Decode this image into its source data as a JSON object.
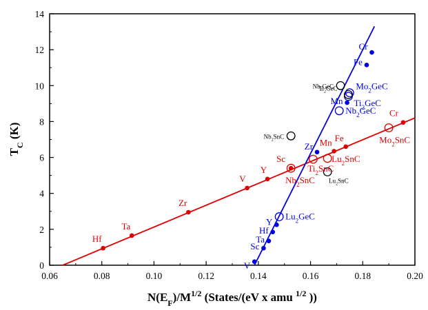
{
  "chart_data": {
    "type": "scatter",
    "xlabel_parts": [
      {
        "t": "N(E",
        "sub": false
      },
      {
        "t": "F",
        "sub": true
      },
      {
        "t": ")/M",
        "sub": false
      },
      {
        "t": "1/2",
        "sup": true
      },
      {
        "t": " (States/(eV x amu ",
        "sub": false
      },
      {
        "t": "1/2",
        "sup": true
      },
      {
        "t": " ))",
        "sub": false
      }
    ],
    "ylabel_parts": [
      {
        "t": "T",
        "sub": false
      },
      {
        "t": "C",
        "sub": true
      },
      {
        "t": " (K)",
        "sub": false
      }
    ],
    "xlim": [
      0.06,
      0.2
    ],
    "ylim": [
      0,
      14
    ],
    "xticks": [
      0.06,
      0.08,
      0.1,
      0.12,
      0.14,
      0.16,
      0.18,
      0.2
    ],
    "xtick_labels": [
      "0.06",
      "0.08",
      "0.10",
      "0.12",
      "0.14",
      "0.16",
      "0.18",
      "0.20"
    ],
    "yticks": [
      0,
      2,
      4,
      6,
      8,
      10,
      12,
      14
    ],
    "ytick_labels": [
      "0",
      "2",
      "4",
      "6",
      "8",
      "10",
      "12",
      "14"
    ],
    "grid": false,
    "lines": [
      {
        "color": "#e00000",
        "x": [
          0.065,
          0.2
        ],
        "y": [
          0.0,
          8.2
        ]
      },
      {
        "color": "#0000e6",
        "x": [
          0.1385,
          0.1845
        ],
        "y": [
          0.0,
          13.3
        ]
      }
    ],
    "series": [
      {
        "color": "#e00000",
        "marker": "dot",
        "points": [
          {
            "x": 0.0805,
            "y": 0.95,
            "label": [
              {
                "t": "Hf"
              }
            ]
          },
          {
            "x": 0.0915,
            "y": 1.65,
            "label": [
              {
                "t": "Ta"
              }
            ]
          },
          {
            "x": 0.1132,
            "y": 2.95,
            "label": [
              {
                "t": "Zr"
              }
            ]
          },
          {
            "x": 0.1357,
            "y": 4.3,
            "label": [
              {
                "t": "V"
              }
            ]
          },
          {
            "x": 0.1435,
            "y": 4.8,
            "label": [
              {
                "t": "Y"
              }
            ]
          },
          {
            "x": 0.1525,
            "y": 5.4,
            "label": [
              {
                "t": "Sc"
              }
            ]
          },
          {
            "x": 0.169,
            "y": 6.35,
            "label": [
              {
                "t": "Mn"
              }
            ]
          },
          {
            "x": 0.1735,
            "y": 6.6,
            "label": [
              {
                "t": "Fe"
              }
            ]
          },
          {
            "x": 0.1955,
            "y": 7.95,
            "label": [
              {
                "t": "Cr"
              }
            ]
          }
        ]
      },
      {
        "color": "#e00000",
        "marker": "circle",
        "points": [
          {
            "x": 0.1525,
            "y": 5.4,
            "label": [
              {
                "t": "Nb"
              },
              {
                "t": "2",
                "sub": true
              },
              {
                "t": "SnC"
              }
            ]
          },
          {
            "x": 0.161,
            "y": 5.9,
            "label": [
              {
                "t": "Ti"
              },
              {
                "t": "2",
                "sub": true
              },
              {
                "t": "SnC"
              }
            ]
          },
          {
            "x": 0.1665,
            "y": 5.95,
            "label": [
              {
                "t": "Lu"
              },
              {
                "t": "2",
                "sub": true
              },
              {
                "t": "SnC"
              }
            ]
          },
          {
            "x": 0.19,
            "y": 7.65,
            "label": [
              {
                "t": "Mo"
              },
              {
                "t": "2",
                "sub": true
              },
              {
                "t": "SnC"
              }
            ]
          }
        ]
      },
      {
        "color": "#0000e6",
        "marker": "dot",
        "points": [
          {
            "x": 0.1385,
            "y": 0.2,
            "label": [
              {
                "t": "V"
              }
            ]
          },
          {
            "x": 0.142,
            "y": 0.95,
            "label": [
              {
                "t": "Sc"
              }
            ]
          },
          {
            "x": 0.144,
            "y": 1.35,
            "label": [
              {
                "t": "Ta"
              }
            ]
          },
          {
            "x": 0.1455,
            "y": 1.85,
            "label": [
              {
                "t": "Hf"
              }
            ]
          },
          {
            "x": 0.147,
            "y": 2.25,
            "label": [
              {
                "t": "Y"
              }
            ]
          },
          {
            "x": 0.1625,
            "y": 6.3,
            "label": [
              {
                "t": "Zr"
              }
            ]
          },
          {
            "x": 0.174,
            "y": 9.05,
            "label": [
              {
                "t": "Mn"
              }
            ]
          },
          {
            "x": 0.1815,
            "y": 11.15,
            "label": [
              {
                "t": "Fe"
              }
            ]
          },
          {
            "x": 0.1835,
            "y": 11.85,
            "label": [
              {
                "t": "Cr"
              }
            ]
          }
        ]
      },
      {
        "color": "#0000e6",
        "marker": "circle",
        "points": [
          {
            "x": 0.148,
            "y": 2.7,
            "label": [
              {
                "t": "Lu"
              },
              {
                "t": "2",
                "sub": true
              },
              {
                "t": "GeC"
              }
            ]
          },
          {
            "x": 0.171,
            "y": 8.6,
            "label": [
              {
                "t": "Nb"
              },
              {
                "t": "2",
                "sub": true
              },
              {
                "t": "GeC"
              }
            ]
          },
          {
            "x": 0.1745,
            "y": 9.4,
            "label": [
              {
                "t": "Ti"
              },
              {
                "t": "2",
                "sub": true
              },
              {
                "t": "GeC"
              }
            ]
          },
          {
            "x": 0.175,
            "y": 9.6,
            "label": [
              {
                "t": "Mo"
              },
              {
                "t": "2",
                "sub": true
              },
              {
                "t": "GeC"
              }
            ]
          }
        ]
      },
      {
        "color": "#000000",
        "marker": "circle",
        "points": [
          {
            "x": 0.1525,
            "y": 7.2,
            "label": [
              {
                "t": "Nb"
              },
              {
                "t": "2",
                "sub": true
              },
              {
                "t": "SnC"
              }
            ]
          },
          {
            "x": 0.1715,
            "y": 10.0,
            "label": [
              {
                "t": "Nb"
              },
              {
                "t": "2",
                "sub": true
              },
              {
                "t": "GeC"
              }
            ]
          },
          {
            "x": 0.1745,
            "y": 9.5,
            "label": [
              {
                "t": "Ti"
              },
              {
                "t": "2",
                "sub": true
              },
              {
                "t": "GeC"
              }
            ]
          },
          {
            "x": 0.1665,
            "y": 5.2,
            "label": [
              {
                "t": "Lu"
              },
              {
                "t": "2",
                "sub": true
              },
              {
                "t": "SnC"
              }
            ]
          }
        ]
      }
    ]
  }
}
